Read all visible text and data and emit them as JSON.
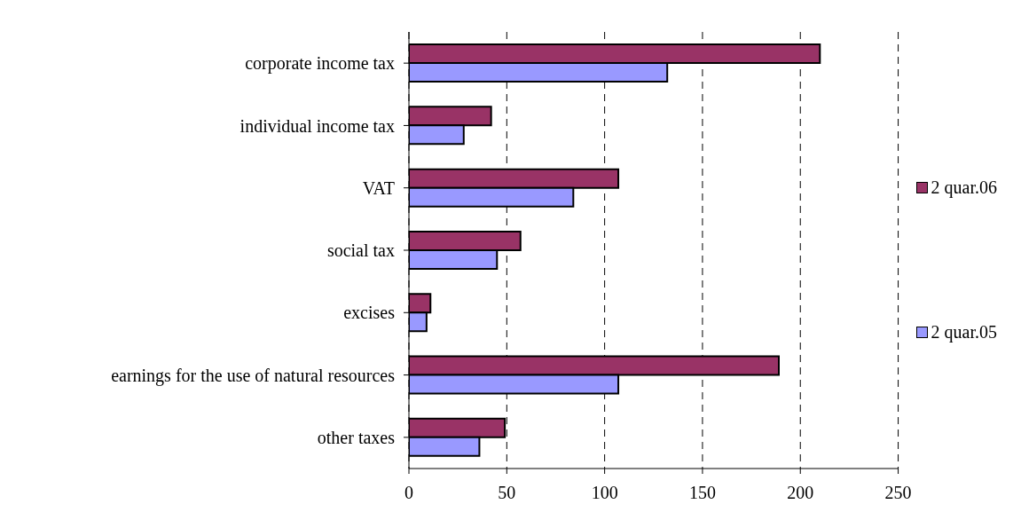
{
  "chart_data": {
    "type": "bar",
    "orientation": "horizontal",
    "categories": [
      "corporate income tax",
      "individual income tax",
      "VAT",
      "social tax",
      "excises",
      "earnings for the use of natural resources",
      "other taxes"
    ],
    "series": [
      {
        "name": "2 quar.06",
        "color": "#993366",
        "values": [
          210,
          42,
          107,
          57,
          11,
          189,
          49
        ]
      },
      {
        "name": "2 quar.05",
        "color": "#9999ff",
        "values": [
          132,
          28,
          84,
          45,
          9,
          107,
          36
        ]
      }
    ],
    "xlim": [
      0,
      250
    ],
    "xticks": [
      0,
      50,
      100,
      150,
      200,
      250
    ],
    "grid": "x",
    "line_style": "dashed",
    "legend": "right"
  }
}
